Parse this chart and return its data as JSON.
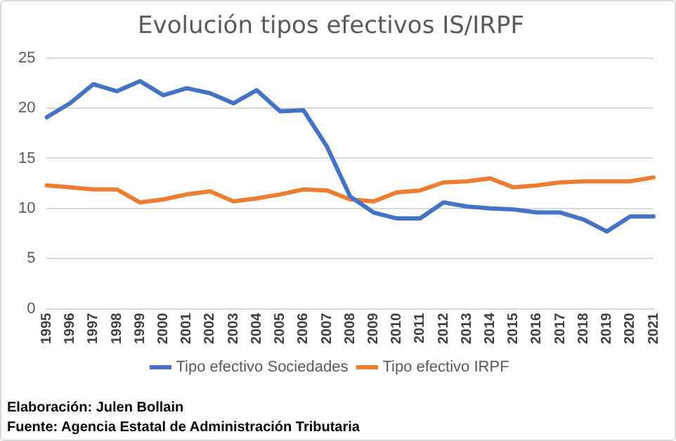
{
  "chart_data": {
    "type": "line",
    "title": "Evolución tipos efectivos IS/IRPF",
    "categories": [
      "1995",
      "1996",
      "1997",
      "1998",
      "1999",
      "2000",
      "2001",
      "2002",
      "2003",
      "2004",
      "2005",
      "2006",
      "2007",
      "2008",
      "2009",
      "2010",
      "2011",
      "2012",
      "2013",
      "2014",
      "2015",
      "2016",
      "2017",
      "2018",
      "2019",
      "2020",
      "2021"
    ],
    "series": [
      {
        "name": "Tipo efectivo Sociedades",
        "color": "#4472c4",
        "values": [
          19.1,
          20.5,
          22.4,
          21.7,
          22.7,
          21.3,
          22.0,
          21.5,
          20.5,
          21.8,
          19.7,
          19.8,
          16.2,
          11.2,
          9.6,
          9.0,
          9.0,
          10.6,
          10.2,
          10.0,
          9.9,
          9.6,
          9.6,
          8.9,
          7.7,
          9.2,
          9.2
        ]
      },
      {
        "name": "Tipo efectivo IRPF",
        "color": "#ed7d31",
        "values": [
          12.3,
          12.1,
          11.9,
          11.9,
          10.6,
          10.9,
          11.4,
          11.7,
          10.7,
          11.0,
          11.4,
          11.9,
          11.8,
          10.9,
          10.7,
          11.6,
          11.8,
          12.6,
          12.7,
          13.0,
          12.1,
          12.3,
          12.6,
          12.7,
          12.7,
          12.7,
          13.1
        ]
      }
    ],
    "ylim": [
      0,
      25
    ],
    "yticks": [
      0,
      5,
      10,
      15,
      20,
      25
    ],
    "grid": "y",
    "legend": "bottom",
    "marker": "none",
    "line_style": "solid",
    "annotations": [
      "Elaboración: Julen Bollain",
      "Fuente: Agencia Estatal de Administración Tributaria"
    ]
  }
}
